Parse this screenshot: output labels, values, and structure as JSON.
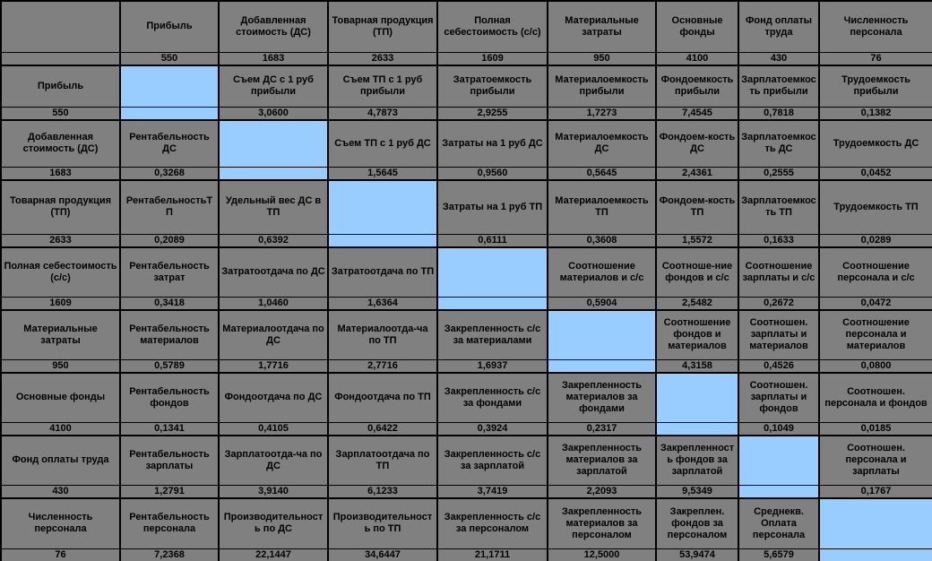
{
  "colors": {
    "cell_background": "#808080",
    "diagonal_highlight": "#99CCFF",
    "border": "#000000",
    "text": "#000000"
  },
  "chart_data": {
    "type": "table",
    "corner_label": "",
    "legend_position": "none",
    "grid": true,
    "columns": [
      {
        "label": "Прибыль",
        "value": "550"
      },
      {
        "label": "Добавленная стоимость (ДС)",
        "value": "1683"
      },
      {
        "label": "Товарная продукция (ТП)",
        "value": "2633"
      },
      {
        "label": "Полная себестоимость (с/с)",
        "value": "1609"
      },
      {
        "label": "Материальные затраты",
        "value": "950"
      },
      {
        "label": "Основные фонды",
        "value": "4100"
      },
      {
        "label": "Фонд оплаты труда",
        "value": "430"
      },
      {
        "label": "Численность персонала",
        "value": "76"
      }
    ],
    "rows": [
      {
        "label": "Прибыль",
        "value": "550",
        "cells": [
          {
            "label": "",
            "value": ""
          },
          {
            "label": "Съем ДС с 1 руб прибыли",
            "value": "3,0600"
          },
          {
            "label": "Съем ТП с 1 руб прибыли",
            "value": "4,7873"
          },
          {
            "label": "Затратоемкость прибыли",
            "value": "2,9255"
          },
          {
            "label": "Материалоемкость прибыли",
            "value": "1,7273"
          },
          {
            "label": "Фондоемкость прибыли",
            "value": "7,4545"
          },
          {
            "label": "Зарплатоемкость прибыли",
            "value": "0,7818"
          },
          {
            "label": "Трудоемкость прибыли",
            "value": "0,1382"
          }
        ]
      },
      {
        "label": "Добавленная стоимость (ДС)",
        "value": "1683",
        "cells": [
          {
            "label": "Рентабельность ДС",
            "value": "0,3268"
          },
          {
            "label": "",
            "value": ""
          },
          {
            "label": "Съем ТП с 1 руб ДС",
            "value": "1,5645"
          },
          {
            "label": "Затраты на 1 руб ДС",
            "value": "0,9560"
          },
          {
            "label": "Материалоемкость ДС",
            "value": "0,5645"
          },
          {
            "label": "Фондоем-кость ДС",
            "value": "2,4361"
          },
          {
            "label": "Зарплатоемкость ДС",
            "value": "0,2555"
          },
          {
            "label": "Трудоемкость ДС",
            "value": "0,0452"
          }
        ]
      },
      {
        "label": "Товарная продукция (ТП)",
        "value": "2633",
        "cells": [
          {
            "label": "РентабельностьТП",
            "value": "0,2089"
          },
          {
            "label": "Удельный вес ДС в ТП",
            "value": "0,6392"
          },
          {
            "label": "",
            "value": ""
          },
          {
            "label": "Затраты на 1 руб ТП",
            "value": "0,6111"
          },
          {
            "label": "Материалоемкость ТП",
            "value": "0,3608"
          },
          {
            "label": "Фондоем-кость ТП",
            "value": "1,5572"
          },
          {
            "label": "Зарплатоемкость ТП",
            "value": "0,1633"
          },
          {
            "label": "Трудоемкость ТП",
            "value": "0,0289"
          }
        ]
      },
      {
        "label": "Полная себестоимость (с/с)",
        "value": "1609",
        "cells": [
          {
            "label": "Рентабельность затрат",
            "value": "0,3418"
          },
          {
            "label": "Затратоотдача по ДС",
            "value": "1,0460"
          },
          {
            "label": "Затратоотдача по ТП",
            "value": "1,6364"
          },
          {
            "label": "",
            "value": ""
          },
          {
            "label": "Соотношение материалов и с/с",
            "value": "0,5904"
          },
          {
            "label": "Соотноше-ние фондов и с/с",
            "value": "2,5482"
          },
          {
            "label": "Соотношение зарплаты и с/с",
            "value": "0,2672"
          },
          {
            "label": "Соотношение персонала и с/с",
            "value": "0,0472"
          }
        ]
      },
      {
        "label": "Материальные затраты",
        "value": "950",
        "cells": [
          {
            "label": "Рентабельность материалов",
            "value": "0,5789"
          },
          {
            "label": "Материалоотдача по ДС",
            "value": "1,7716"
          },
          {
            "label": "Материалоотда-ча по ТП",
            "value": "2,7716"
          },
          {
            "label": "Закрепленность с/с за материалами",
            "value": "1,6937"
          },
          {
            "label": "",
            "value": ""
          },
          {
            "label": "Соотношение фондов и материалов",
            "value": "4,3158"
          },
          {
            "label": "Соотношен. зарплаты и материалов",
            "value": "0,4526"
          },
          {
            "label": "Соотношение персонала и материалов",
            "value": "0,0800"
          }
        ]
      },
      {
        "label": "Основные фонды",
        "value": "4100",
        "cells": [
          {
            "label": "Рентабельность фондов",
            "value": "0,1341"
          },
          {
            "label": "Фондоотдача по ДС",
            "value": "0,4105"
          },
          {
            "label": "Фондоотдача по ТП",
            "value": "0,6422"
          },
          {
            "label": "Закрепленность с/с за фондами",
            "value": "0,3924"
          },
          {
            "label": "Закрепленность материалов за фондами",
            "value": "0,2317"
          },
          {
            "label": "",
            "value": ""
          },
          {
            "label": "Соотношен. зарплаты и фондов",
            "value": "0,1049"
          },
          {
            "label": "Соотношен. персонала и фондов",
            "value": "0,0185"
          }
        ]
      },
      {
        "label": "Фонд оплаты труда",
        "value": "430",
        "cells": [
          {
            "label": "Рентабельность зарплаты",
            "value": "1,2791"
          },
          {
            "label": "Зарплатоотда-ча по ДС",
            "value": "3,9140"
          },
          {
            "label": "Зарплатоотдача по ТП",
            "value": "6,1233"
          },
          {
            "label": "Закрепленность с/с за зарплатой",
            "value": "3,7419"
          },
          {
            "label": "Закрепленность материалов за зарплатой",
            "value": "2,2093"
          },
          {
            "label": "Закрепленность фондов за зарплатой",
            "value": "9,5349"
          },
          {
            "label": "",
            "value": ""
          },
          {
            "label": "Соотношен. персонала и зарплаты",
            "value": "0,1767"
          }
        ]
      },
      {
        "label": "Численность персонала",
        "value": "76",
        "cells": [
          {
            "label": "Рентабельность персонала",
            "value": "7,2368"
          },
          {
            "label": "Производительность по ДС",
            "value": "22,1447"
          },
          {
            "label": "Производительность по ТП",
            "value": "34,6447"
          },
          {
            "label": "Закрепленность с/с за персоналом",
            "value": "21,1711"
          },
          {
            "label": "Закрепленность материалов за персоналом",
            "value": "12,5000"
          },
          {
            "label": "Закреплен. фондов за персоналом",
            "value": "53,9474"
          },
          {
            "label": "Среднекв. Оплата персонала",
            "value": "5,6579"
          },
          {
            "label": "",
            "value": ""
          }
        ]
      }
    ]
  }
}
